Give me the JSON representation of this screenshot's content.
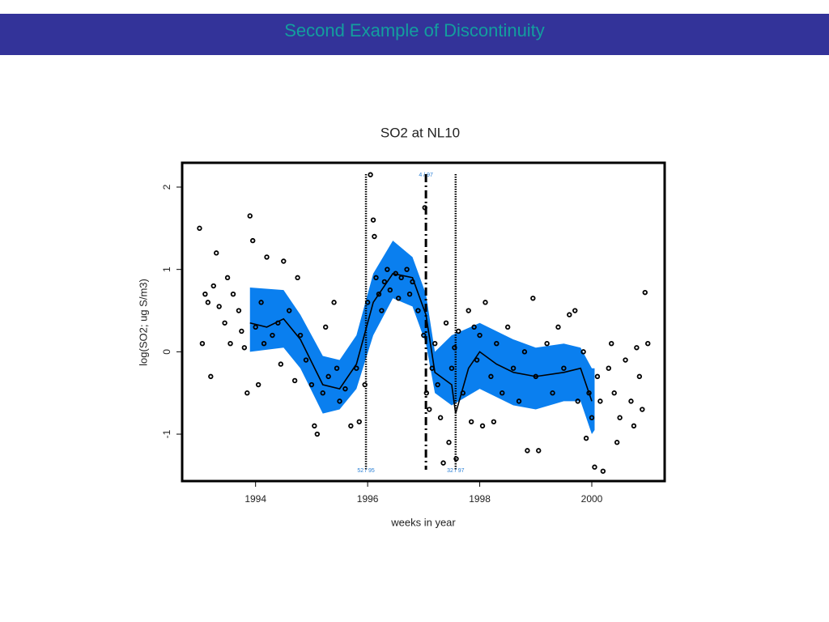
{
  "header": {
    "title": "Second Example of Discontinuity"
  },
  "chart_data": {
    "type": "scatter",
    "title": "SO2 at NL10",
    "x_label": "weeks in year",
    "y_label": "log(SO2; ug S/m3)",
    "xlim": [
      1992.69,
      2001.3
    ],
    "ylim": [
      -1.57,
      2.295
    ],
    "xticks": [
      1994,
      1996,
      1998,
      2000
    ],
    "yticks": [
      -1,
      0,
      1,
      2
    ],
    "point_color": "#000000",
    "x": [
      1993.0,
      1993.05,
      1993.1,
      1993.15,
      1993.2,
      1993.25,
      1993.3,
      1993.35,
      1993.45,
      1993.5,
      1993.55,
      1993.6,
      1993.7,
      1993.75,
      1993.8,
      1993.85,
      1993.9,
      1993.95,
      1994.0,
      1994.05,
      1994.1,
      1994.15,
      1994.2,
      1994.3,
      1994.4,
      1994.45,
      1994.5,
      1994.6,
      1994.7,
      1994.75,
      1994.8,
      1994.9,
      1995.0,
      1995.05,
      1995.1,
      1995.2,
      1995.25,
      1995.3,
      1995.4,
      1995.45,
      1995.5,
      1995.6,
      1995.7,
      1995.8,
      1995.85,
      1995.95,
      1996.0,
      1996.05,
      1996.1,
      1996.12,
      1996.15,
      1996.2,
      1996.25,
      1996.3,
      1996.35,
      1996.4,
      1996.5,
      1996.55,
      1996.6,
      1996.7,
      1996.75,
      1996.8,
      1996.9,
      1997.0,
      1997.02,
      1997.05,
      1997.1,
      1997.15,
      1997.2,
      1997.25,
      1997.3,
      1997.35,
      1997.4,
      1997.45,
      1997.5,
      1997.55,
      1997.58,
      1997.62,
      1997.7,
      1997.8,
      1997.85,
      1997.9,
      1997.95,
      1998.0,
      1998.05,
      1998.1,
      1998.2,
      1998.25,
      1998.3,
      1998.4,
      1998.5,
      1998.6,
      1998.7,
      1998.8,
      1998.85,
      1998.95,
      1999.0,
      1999.05,
      1999.2,
      1999.3,
      1999.4,
      1999.5,
      1999.6,
      1999.7,
      1999.75,
      1999.85,
      1999.9,
      1999.95,
      2000.0,
      2000.05,
      2000.1,
      2000.15,
      2000.2,
      2000.3,
      2000.35,
      2000.4,
      2000.45,
      2000.5,
      2000.6,
      2000.7,
      2000.75,
      2000.8,
      2000.85,
      2000.9,
      2000.95,
      2001.0
    ],
    "values": [
      1.5,
      0.1,
      0.7,
      0.6,
      -0.3,
      0.8,
      1.2,
      0.55,
      0.35,
      0.9,
      0.1,
      0.7,
      0.5,
      0.25,
      0.05,
      -0.5,
      1.65,
      1.35,
      0.3,
      -0.4,
      0.6,
      0.1,
      1.15,
      0.2,
      0.35,
      -0.15,
      1.1,
      0.5,
      -0.35,
      0.9,
      0.2,
      -0.1,
      -0.4,
      -0.9,
      -1.0,
      -0.5,
      0.3,
      -0.3,
      0.6,
      -0.2,
      -0.6,
      -0.45,
      -0.9,
      -0.2,
      -0.85,
      -0.4,
      0.6,
      2.15,
      1.6,
      1.4,
      0.9,
      0.7,
      0.5,
      0.85,
      1.0,
      0.75,
      0.95,
      0.65,
      0.9,
      1.0,
      0.7,
      0.85,
      0.5,
      0.2,
      1.75,
      -0.5,
      -0.7,
      -0.2,
      0.1,
      -0.4,
      -0.8,
      -1.35,
      0.35,
      -1.1,
      -0.2,
      0.05,
      -1.3,
      0.25,
      -0.5,
      0.5,
      -0.85,
      0.3,
      -0.1,
      0.2,
      -0.9,
      0.6,
      -0.3,
      -0.85,
      0.1,
      -0.5,
      0.3,
      -0.2,
      -0.6,
      0.0,
      -1.2,
      0.65,
      -0.3,
      -1.2,
      0.1,
      -0.5,
      0.3,
      -0.2,
      0.45,
      0.5,
      -0.6,
      0.0,
      -1.05,
      -0.5,
      -0.8,
      -1.4,
      -0.3,
      -0.6,
      -1.45,
      -0.2,
      0.1,
      -0.5,
      -1.1,
      -0.8,
      -0.1,
      -0.6,
      -0.9,
      0.05,
      -0.3,
      -0.7,
      0.72,
      0.1
    ],
    "band": {
      "color": "#0a7fef",
      "x": [
        1993.9,
        1994.5,
        1994.8,
        1995.2,
        1995.5,
        1995.8,
        1996.1,
        1996.45,
        1996.8,
        1997.04,
        1997.2,
        1997.5,
        1998.0,
        1998.6,
        1999.0,
        1999.5,
        1999.8,
        2000.0,
        2000.05
      ],
      "upper": [
        0.78,
        0.75,
        0.45,
        -0.05,
        -0.1,
        0.2,
        0.95,
        1.35,
        1.15,
        0.7,
        0.0,
        0.2,
        0.35,
        0.15,
        0.05,
        0.1,
        0.05,
        -0.2,
        -0.2
      ],
      "lower": [
        0.0,
        0.05,
        -0.2,
        -0.75,
        -0.7,
        -0.45,
        0.2,
        0.65,
        0.55,
        0.1,
        -0.5,
        -0.65,
        -0.45,
        -0.65,
        -0.7,
        -0.6,
        -0.6,
        -1.0,
        -0.95
      ]
    },
    "fit": {
      "x": [
        1993.9,
        1994.2,
        1994.5,
        1994.8,
        1995.2,
        1995.5,
        1995.8,
        1996.1,
        1996.45,
        1996.8,
        1997.04,
        1997.2,
        1997.5,
        1997.57,
        1997.8,
        1998.0,
        1998.3,
        1998.6,
        1999.0,
        1999.5,
        1999.8,
        2000.0
      ],
      "values": [
        0.35,
        0.3,
        0.4,
        0.15,
        -0.4,
        -0.45,
        -0.15,
        0.6,
        0.95,
        0.9,
        0.45,
        -0.25,
        -0.4,
        -0.75,
        -0.2,
        0.0,
        -0.15,
        -0.25,
        -0.3,
        -0.25,
        -0.2,
        -0.6
      ]
    },
    "breaks": [
      {
        "x": 1995.97,
        "label": "52 / 95",
        "style": "dotted",
        "label_position": "bottom"
      },
      {
        "x": 1997.04,
        "label": "4 / 97",
        "style": "dashdot",
        "label_position": "top"
      },
      {
        "x": 1997.57,
        "label": "32 / 97",
        "style": "dotted",
        "label_position": "bottom"
      }
    ]
  }
}
